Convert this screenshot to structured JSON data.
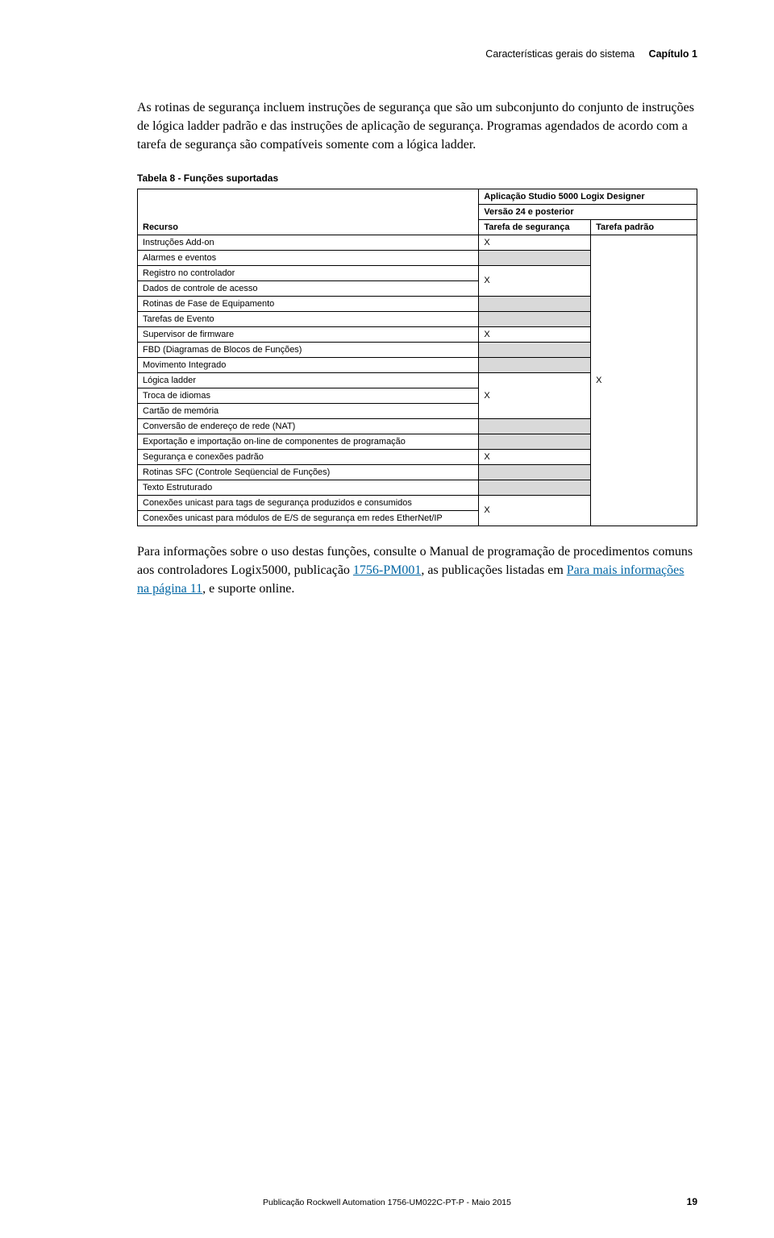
{
  "header": {
    "section": "Características gerais do sistema",
    "chapter": "Capítulo 1"
  },
  "intro": "As rotinas de segurança incluem instruções de segurança que são um subconjunto do conjunto de instruções de lógica ladder padrão e das instruções de aplicação de segurança. Programas agendados de acordo com a tarefa de segurança são compatíveis somente com a lógica ladder.",
  "table": {
    "title": "Tabela 8 - Funções suportadas",
    "header_app": "Aplicação Studio 5000 Logix Designer",
    "header_ver": "Versão 24 e posterior",
    "col_recurso": "Recurso",
    "col_safe": "Tarefa de segurança",
    "col_std": "Tarefa padrão",
    "rows": [
      {
        "label": "Instruções Add-on"
      },
      {
        "label": "Alarmes e eventos"
      },
      {
        "label": "Registro no controlador"
      },
      {
        "label": "Dados de controle de acesso"
      },
      {
        "label": "Rotinas de Fase de Equipamento"
      },
      {
        "label": "Tarefas de Evento"
      },
      {
        "label": "Supervisor de firmware"
      },
      {
        "label": "FBD (Diagramas de Blocos de Funções)"
      },
      {
        "label": "Movimento Integrado"
      },
      {
        "label": "Lógica ladder"
      },
      {
        "label": "Troca de idiomas"
      },
      {
        "label": "Cartão de memória"
      },
      {
        "label": "Conversão de endereço de rede (NAT)"
      },
      {
        "label": "Exportação e importação on-line de componentes de programação"
      },
      {
        "label": "Segurança e conexões padrão"
      },
      {
        "label": "Rotinas SFC (Controle Seqüencial de Funções)"
      },
      {
        "label": "Texto Estruturado"
      },
      {
        "label": "Conexões unicast para tags de segurança produzidos e consumidos"
      },
      {
        "label": "Conexões unicast para módulos de E/S de segurança em redes EtherNet/IP"
      }
    ],
    "x": "X"
  },
  "after": {
    "t1": "Para informações sobre o uso destas funções, consulte o Manual de programação de procedimentos comuns aos controladores Logix5000, publicação ",
    "link1": "1756-PM001",
    "t2": ", as publicações listadas em ",
    "link2": "Para mais informações na página 11",
    "t3": ", e suporte online."
  },
  "footer": "Publicação Rockwell Automation 1756-UM022C-PT-P - Maio 2015",
  "pagenum": "19",
  "style": {
    "shade": "#d9d9d9",
    "link_color": "#0066a4",
    "body_fontsize": 16,
    "table_fontsize": 11
  }
}
